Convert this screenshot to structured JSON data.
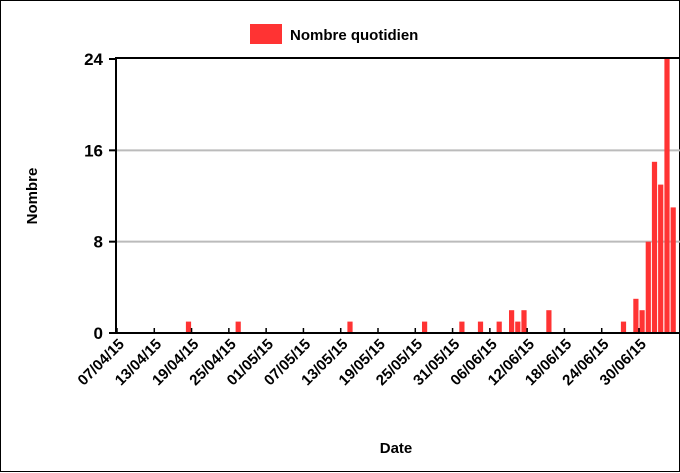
{
  "chart_data": {
    "type": "bar",
    "legend": {
      "label": "Nombre quotidien",
      "placement": "top"
    },
    "xlabel": "Date",
    "ylabel": "Nombre",
    "ylim": [
      0,
      24
    ],
    "y_ticks": [
      0,
      8,
      16,
      24
    ],
    "x_ticks": [
      "07/04/15",
      "13/04/15",
      "19/04/15",
      "25/04/15",
      "01/05/15",
      "07/05/15",
      "13/05/15",
      "19/05/15",
      "25/05/15",
      "31/05/15",
      "06/06/15",
      "12/06/15",
      "18/06/15",
      "24/06/15",
      "30/06/15"
    ],
    "start_date": "07/04/15",
    "color": "#ff3333",
    "grid": true,
    "points": [
      {
        "date": "18/04/15",
        "value": 1
      },
      {
        "date": "26/04/15",
        "value": 1
      },
      {
        "date": "14/05/15",
        "value": 1
      },
      {
        "date": "26/05/15",
        "value": 1
      },
      {
        "date": "01/06/15",
        "value": 1
      },
      {
        "date": "04/06/15",
        "value": 1
      },
      {
        "date": "07/06/15",
        "value": 1
      },
      {
        "date": "09/06/15",
        "value": 2
      },
      {
        "date": "10/06/15",
        "value": 1
      },
      {
        "date": "11/06/15",
        "value": 2
      },
      {
        "date": "15/06/15",
        "value": 2
      },
      {
        "date": "27/06/15",
        "value": 1
      },
      {
        "date": "29/06/15",
        "value": 3
      },
      {
        "date": "30/06/15",
        "value": 2
      },
      {
        "date": "01/07/15",
        "value": 8
      },
      {
        "date": "02/07/15",
        "value": 15
      },
      {
        "date": "03/07/15",
        "value": 13
      },
      {
        "date": "04/07/15",
        "value": 24
      },
      {
        "date": "05/07/15",
        "value": 11
      }
    ]
  }
}
